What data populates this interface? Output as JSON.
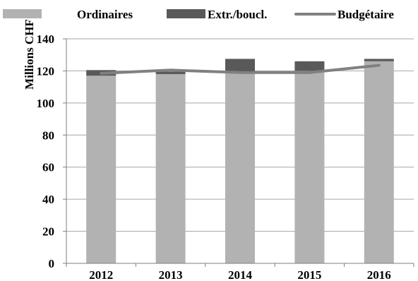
{
  "chart_data": {
    "type": "bar",
    "stacked": true,
    "categories": [
      "2012",
      "2013",
      "2014",
      "2015",
      "2016"
    ],
    "series": [
      {
        "name": "Ordinaires",
        "kind": "bar",
        "color": "#b2b2b2",
        "values": [
          117,
          118,
          119,
          120,
          126
        ]
      },
      {
        "name": "Extr./boucl.",
        "kind": "bar",
        "color": "#595959",
        "values": [
          3.5,
          1.5,
          8.5,
          6,
          1.5
        ]
      },
      {
        "name": "Budgétaire",
        "kind": "line",
        "color": "#808080",
        "values": [
          118.5,
          120.5,
          119,
          119,
          123.5
        ]
      }
    ],
    "ylabel": "Millions CHF",
    "ylim": [
      0,
      140
    ],
    "yticks": [
      0,
      20,
      40,
      60,
      80,
      100,
      120,
      140
    ],
    "grid": true,
    "legend": "top"
  }
}
